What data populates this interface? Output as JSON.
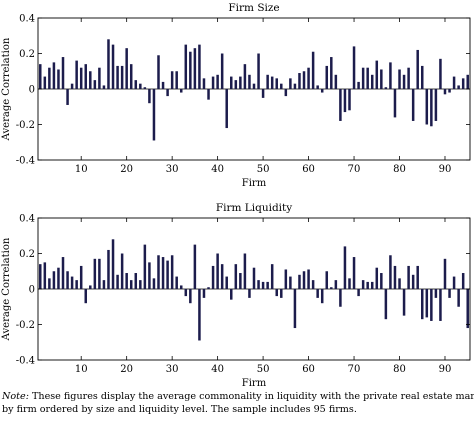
{
  "chart_data": [
    {
      "type": "bar",
      "title": "Firm Size",
      "xlabel": "Firm",
      "ylabel": "Average Correlation",
      "xlim": [
        0.5,
        95.5
      ],
      "ylim": [
        -0.4,
        0.4
      ],
      "xticks": [
        10,
        20,
        30,
        40,
        50,
        60,
        70,
        80,
        90
      ],
      "yticks": [
        -0.4,
        -0.2,
        0,
        0.2,
        0.4
      ],
      "xtick_labels": [
        "10",
        "20",
        "30",
        "40",
        "50",
        "60",
        "70",
        "80",
        "90"
      ],
      "ytick_labels": [
        "-0.4",
        "-0.2",
        "0",
        "0.2",
        "0.4"
      ],
      "grid": false,
      "bar_color": "#1c1c4c",
      "x": [
        1,
        2,
        3,
        4,
        5,
        6,
        7,
        8,
        9,
        10,
        11,
        12,
        13,
        14,
        15,
        16,
        17,
        18,
        19,
        20,
        21,
        22,
        23,
        24,
        25,
        26,
        27,
        28,
        29,
        30,
        31,
        32,
        33,
        34,
        35,
        36,
        37,
        38,
        39,
        40,
        41,
        42,
        43,
        44,
        45,
        46,
        47,
        48,
        49,
        50,
        51,
        52,
        53,
        54,
        55,
        56,
        57,
        58,
        59,
        60,
        61,
        62,
        63,
        64,
        65,
        66,
        67,
        68,
        69,
        70,
        71,
        72,
        73,
        74,
        75,
        76,
        77,
        78,
        79,
        80,
        81,
        82,
        83,
        84,
        85,
        86,
        87,
        88,
        89,
        90,
        91,
        92,
        93,
        94,
        95
      ],
      "values": [
        0.14,
        0.07,
        0.12,
        0.15,
        0.11,
        0.18,
        -0.09,
        0.03,
        0.16,
        0.12,
        0.14,
        0.1,
        0.05,
        0.12,
        0.02,
        0.28,
        0.25,
        0.13,
        0.13,
        0.23,
        0.14,
        0.05,
        0.03,
        0.01,
        -0.08,
        -0.29,
        0.19,
        0.04,
        -0.04,
        0.1,
        0.1,
        -0.02,
        0.25,
        0.21,
        0.23,
        0.25,
        0.06,
        -0.06,
        0.07,
        0.08,
        0.2,
        -0.22,
        0.07,
        0.05,
        0.07,
        0.14,
        0.08,
        0.03,
        0.2,
        -0.05,
        0.08,
        0.07,
        0.06,
        0.03,
        -0.04,
        0.06,
        0.03,
        0.09,
        0.1,
        0.12,
        0.21,
        0.02,
        -0.02,
        0.13,
        0.18,
        0.08,
        -0.18,
        -0.13,
        -0.12,
        0.24,
        0.04,
        0.12,
        0.12,
        0.08,
        0.16,
        0.11,
        0.01,
        0.15,
        -0.16,
        0.11,
        0.08,
        0.12,
        -0.18,
        0.22,
        0.13,
        -0.2,
        -0.21,
        -0.18,
        0.17,
        -0.03,
        -0.02,
        0.07,
        0.02,
        0.06,
        0.08
      ]
    },
    {
      "type": "bar",
      "title": "Firm Liquidity",
      "xlabel": "Firm",
      "ylabel": "Average Correlation",
      "xlim": [
        0.5,
        95.5
      ],
      "ylim": [
        -0.4,
        0.4
      ],
      "xticks": [
        10,
        20,
        30,
        40,
        50,
        60,
        70,
        80,
        90
      ],
      "yticks": [
        -0.4,
        -0.2,
        0,
        0.2,
        0.4
      ],
      "xtick_labels": [
        "10",
        "20",
        "30",
        "40",
        "50",
        "60",
        "70",
        "80",
        "90"
      ],
      "ytick_labels": [
        "-0.4",
        "-0.2",
        "0",
        "0.2",
        "0.4"
      ],
      "grid": false,
      "bar_color": "#1c1c4c",
      "x": [
        1,
        2,
        3,
        4,
        5,
        6,
        7,
        8,
        9,
        10,
        11,
        12,
        13,
        14,
        15,
        16,
        17,
        18,
        19,
        20,
        21,
        22,
        23,
        24,
        25,
        26,
        27,
        28,
        29,
        30,
        31,
        32,
        33,
        34,
        35,
        36,
        37,
        38,
        39,
        40,
        41,
        42,
        43,
        44,
        45,
        46,
        47,
        48,
        49,
        50,
        51,
        52,
        53,
        54,
        55,
        56,
        57,
        58,
        59,
        60,
        61,
        62,
        63,
        64,
        65,
        66,
        67,
        68,
        69,
        70,
        71,
        72,
        73,
        74,
        75,
        76,
        77,
        78,
        79,
        80,
        81,
        82,
        83,
        84,
        85,
        86,
        87,
        88,
        89,
        90,
        91,
        92,
        93,
        94,
        95
      ],
      "values": [
        0.14,
        0.15,
        0.06,
        0.1,
        0.12,
        0.18,
        0.1,
        0.07,
        0.05,
        0.13,
        -0.08,
        0.02,
        0.17,
        0.17,
        0.05,
        0.22,
        0.28,
        0.08,
        0.2,
        0.09,
        0.05,
        0.09,
        0.05,
        0.25,
        0.15,
        0.06,
        0.19,
        0.18,
        0.16,
        0.19,
        0.07,
        0.02,
        -0.04,
        -0.08,
        0.25,
        -0.29,
        -0.05,
        0.01,
        0.13,
        0.2,
        0.14,
        0.07,
        -0.06,
        0.14,
        0.09,
        0.2,
        -0.05,
        0.12,
        0.05,
        0.04,
        0.04,
        0.14,
        -0.04,
        -0.05,
        0.11,
        0.07,
        -0.22,
        0.08,
        0.1,
        0.11,
        0.05,
        -0.05,
        -0.08,
        0.1,
        0.01,
        0.05,
        -0.1,
        0.24,
        0.06,
        0.18,
        -0.04,
        0.05,
        0.04,
        0.04,
        0.12,
        0.09,
        -0.17,
        0.19,
        0.13,
        0.06,
        -0.15,
        0.13,
        0.08,
        0.13,
        -0.17,
        -0.16,
        -0.18,
        -0.05,
        -0.18,
        0.17,
        -0.05,
        0.07,
        -0.1,
        0.09,
        -0.22
      ]
    }
  ],
  "note": {
    "lead": "Note:",
    "line1": "These figures display the average commonality in liquidity with the private real estate market",
    "line2": "by firm ordered by size and liquidity level. The sample includes 95 firms."
  }
}
